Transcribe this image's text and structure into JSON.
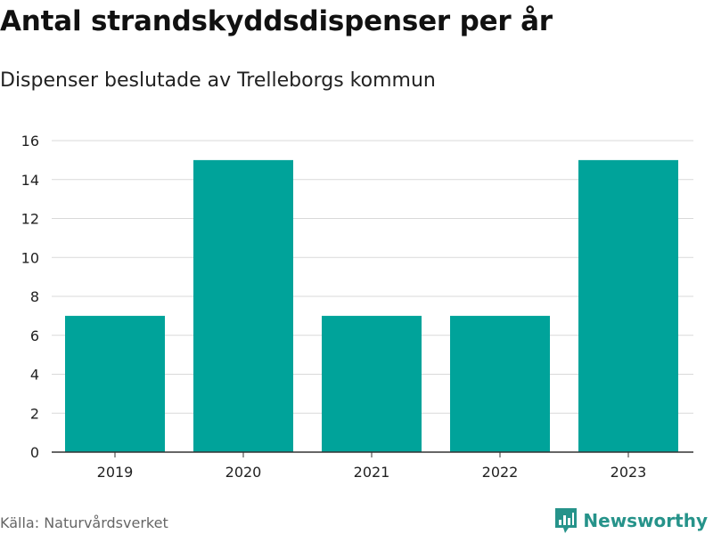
{
  "header": {
    "title": "Antal strandskyddsdispenser per år",
    "subtitle": "Dispenser beslutade av Trelleborgs kommun"
  },
  "footer": {
    "source": "Källa: Naturvårdsverket",
    "brand": "Newsworthy"
  },
  "colors": {
    "bar": "#00a39a",
    "brand": "#26938a"
  },
  "chart_data": {
    "type": "bar",
    "title": "Antal strandskyddsdispenser per år",
    "subtitle": "Dispenser beslutade av Trelleborgs kommun",
    "categories": [
      "2019",
      "2020",
      "2021",
      "2022",
      "2023"
    ],
    "values": [
      7,
      15,
      7,
      7,
      15
    ],
    "ylim": [
      0,
      16
    ],
    "yticks": [
      0,
      2,
      4,
      6,
      8,
      10,
      12,
      14,
      16
    ],
    "grid": true,
    "legend": "none"
  }
}
